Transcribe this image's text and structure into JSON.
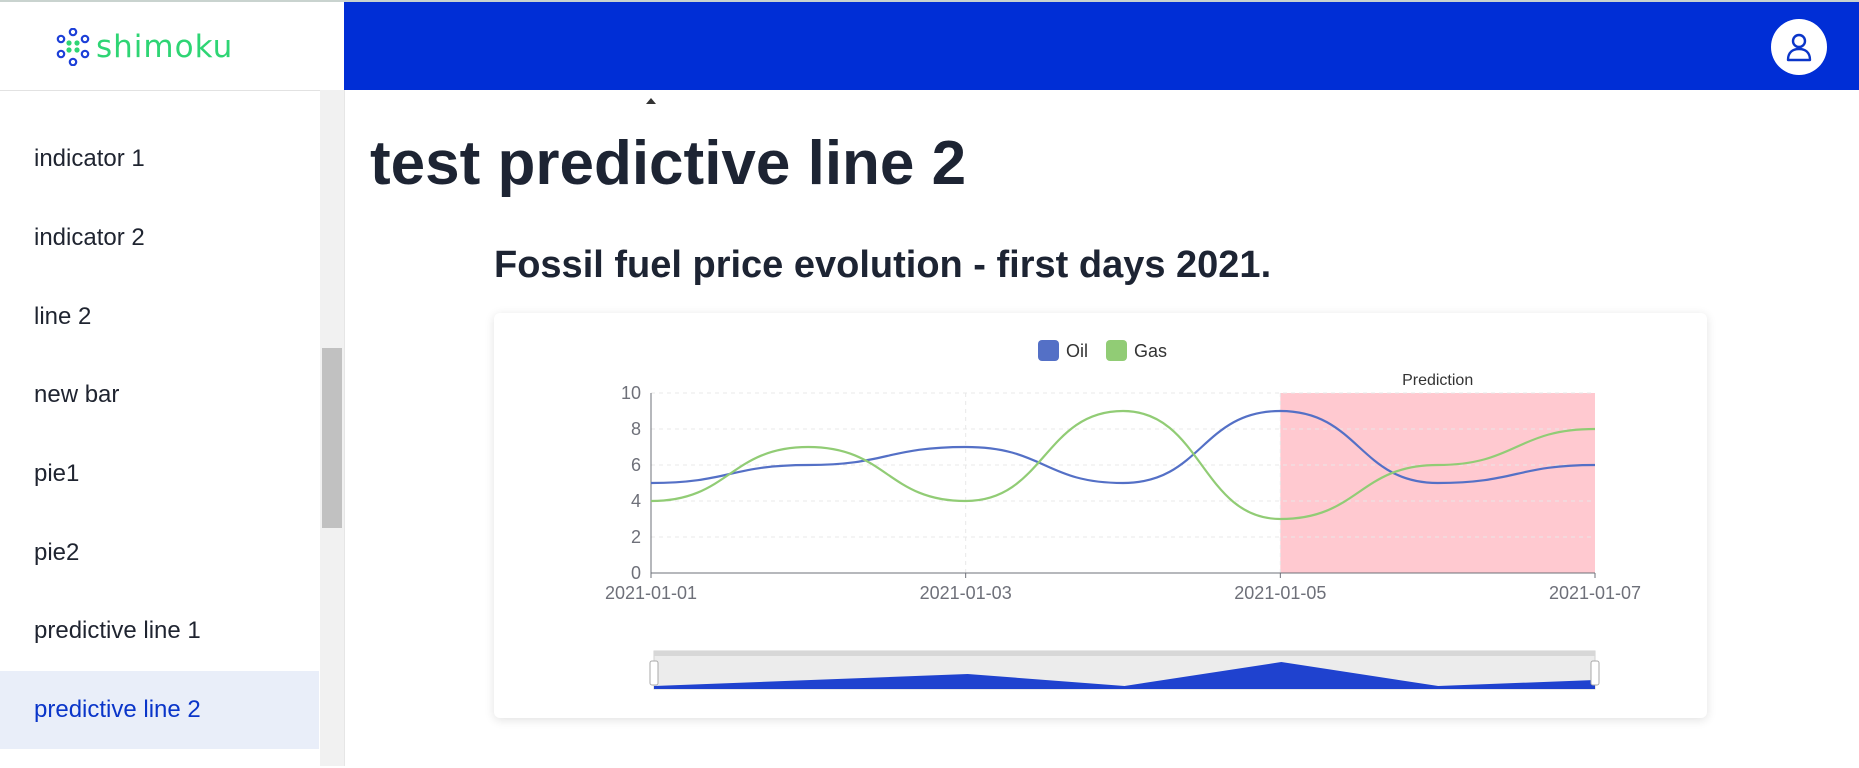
{
  "app": {
    "logo_text": "shimoku",
    "logo_icon": "dots-logo-icon",
    "user_icon": "user-icon"
  },
  "colors": {
    "header": "#002ed6",
    "brand_green": "#2ed574",
    "active_item_bg": "#e9eef9",
    "active_item_text": "#0a35c9",
    "oil": "#5470c6",
    "gas": "#91cc75",
    "prediction_band": "#ffc9d0"
  },
  "sidebar": {
    "items": [
      {
        "label": "indicator 1",
        "active": false
      },
      {
        "label": "indicator 2",
        "active": false
      },
      {
        "label": "line 2",
        "active": false
      },
      {
        "label": "new bar",
        "active": false
      },
      {
        "label": "pie1",
        "active": false
      },
      {
        "label": "pie2",
        "active": false
      },
      {
        "label": "predictive line 1",
        "active": false
      },
      {
        "label": "predictive line 2",
        "active": true
      }
    ]
  },
  "main": {
    "page_title": "test predictive line 2",
    "chart_title": "Fossil fuel price evolution - first days 2021."
  },
  "chart_data": {
    "type": "line",
    "title": "Fossil fuel price evolution - first days 2021.",
    "x": [
      "2021-01-01",
      "2021-01-02",
      "2021-01-03",
      "2021-01-04",
      "2021-01-05",
      "2021-01-06",
      "2021-01-07"
    ],
    "x_tick_labels": [
      "2021-01-01",
      "2021-01-03",
      "2021-01-05",
      "2021-01-07"
    ],
    "series": [
      {
        "name": "Oil",
        "values": [
          5,
          6,
          7,
          5,
          9,
          5,
          6
        ]
      },
      {
        "name": "Gas",
        "values": [
          4,
          7,
          4,
          9,
          3,
          6,
          8
        ]
      }
    ],
    "ylim": [
      0,
      10
    ],
    "y_ticks": [
      0,
      2,
      4,
      6,
      8,
      10
    ],
    "smooth": true,
    "legend_position": "top-center",
    "prediction_band": {
      "label": "Prediction",
      "from": "2021-01-05",
      "to": "2021-01-07"
    },
    "data_zoom_slider": true,
    "grid": "light dashed"
  }
}
